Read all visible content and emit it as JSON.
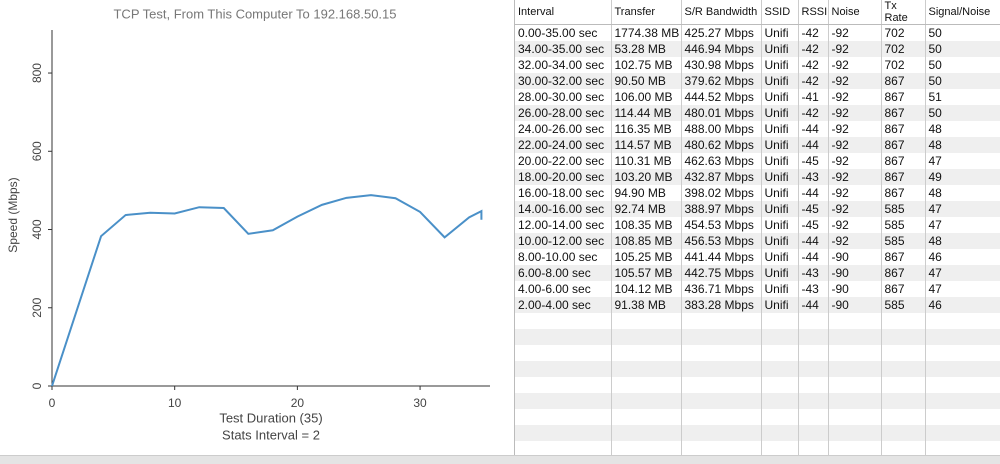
{
  "chart_data": {
    "type": "line",
    "title": "TCP Test,  From This Computer To 192.168.50.15",
    "x_label": "Test Duration (35)",
    "x_label_note": "Stats Interval = 2",
    "y_label": "Speed (Mbps)",
    "x": [
      0,
      4,
      6,
      8,
      10,
      12,
      14,
      16,
      18,
      20,
      22,
      24,
      26,
      28,
      30,
      32,
      34,
      35,
      35
    ],
    "values": [
      0,
      383,
      437,
      443,
      441,
      457,
      455,
      389,
      398,
      433,
      463,
      481,
      488,
      480,
      445,
      380,
      431,
      447,
      425
    ],
    "color": "#4a90c8",
    "xlim": [
      0,
      35.7
    ],
    "xticks": [
      0,
      10,
      20,
      30
    ],
    "ylim": [
      0,
      910
    ],
    "yticks": [
      0,
      200,
      400,
      600,
      800
    ],
    "grid": false
  },
  "table": {
    "columns": [
      "Interval",
      "Transfer",
      "S/R Bandwidth",
      "SSID",
      "RSSI",
      "Noise",
      "Tx Rate",
      "Signal/Noise"
    ],
    "rows": [
      [
        "0.00-35.00 sec",
        "1774.38 MB",
        "425.27 Mbps",
        "Unifi",
        "-42",
        "-92",
        "702",
        "50"
      ],
      [
        "34.00-35.00 sec",
        "53.28 MB",
        "446.94 Mbps",
        "Unifi",
        "-42",
        "-92",
        "702",
        "50"
      ],
      [
        "32.00-34.00 sec",
        "102.75 MB",
        "430.98 Mbps",
        "Unifi",
        "-42",
        "-92",
        "702",
        "50"
      ],
      [
        "30.00-32.00 sec",
        "90.50 MB",
        "379.62 Mbps",
        "Unifi",
        "-42",
        "-92",
        "867",
        "50"
      ],
      [
        "28.00-30.00 sec",
        "106.00 MB",
        "444.52 Mbps",
        "Unifi",
        "-41",
        "-92",
        "867",
        "51"
      ],
      [
        "26.00-28.00 sec",
        "114.44 MB",
        "480.01 Mbps",
        "Unifi",
        "-42",
        "-92",
        "867",
        "50"
      ],
      [
        "24.00-26.00 sec",
        "116.35 MB",
        "488.00 Mbps",
        "Unifi",
        "-44",
        "-92",
        "867",
        "48"
      ],
      [
        "22.00-24.00 sec",
        "114.57 MB",
        "480.62 Mbps",
        "Unifi",
        "-44",
        "-92",
        "867",
        "48"
      ],
      [
        "20.00-22.00 sec",
        "110.31 MB",
        "462.63 Mbps",
        "Unifi",
        "-45",
        "-92",
        "867",
        "47"
      ],
      [
        "18.00-20.00 sec",
        "103.20 MB",
        "432.87 Mbps",
        "Unifi",
        "-43",
        "-92",
        "867",
        "49"
      ],
      [
        "16.00-18.00 sec",
        "94.90 MB",
        "398.02 Mbps",
        "Unifi",
        "-44",
        "-92",
        "867",
        "48"
      ],
      [
        "14.00-16.00 sec",
        "92.74 MB",
        "388.97 Mbps",
        "Unifi",
        "-45",
        "-92",
        "585",
        "47"
      ],
      [
        "12.00-14.00 sec",
        "108.35 MB",
        "454.53 Mbps",
        "Unifi",
        "-45",
        "-92",
        "585",
        "47"
      ],
      [
        "10.00-12.00 sec",
        "108.85 MB",
        "456.53 Mbps",
        "Unifi",
        "-44",
        "-92",
        "585",
        "48"
      ],
      [
        "8.00-10.00 sec",
        "105.25 MB",
        "441.44 Mbps",
        "Unifi",
        "-44",
        "-90",
        "867",
        "46"
      ],
      [
        "6.00-8.00 sec",
        "105.57 MB",
        "442.75 Mbps",
        "Unifi",
        "-43",
        "-90",
        "867",
        "47"
      ],
      [
        "4.00-6.00 sec",
        "104.12 MB",
        "436.71 Mbps",
        "Unifi",
        "-43",
        "-90",
        "867",
        "47"
      ],
      [
        "2.00-4.00 sec",
        "91.38 MB",
        "383.28 Mbps",
        "Unifi",
        "-44",
        "-90",
        "585",
        "46"
      ]
    ]
  }
}
